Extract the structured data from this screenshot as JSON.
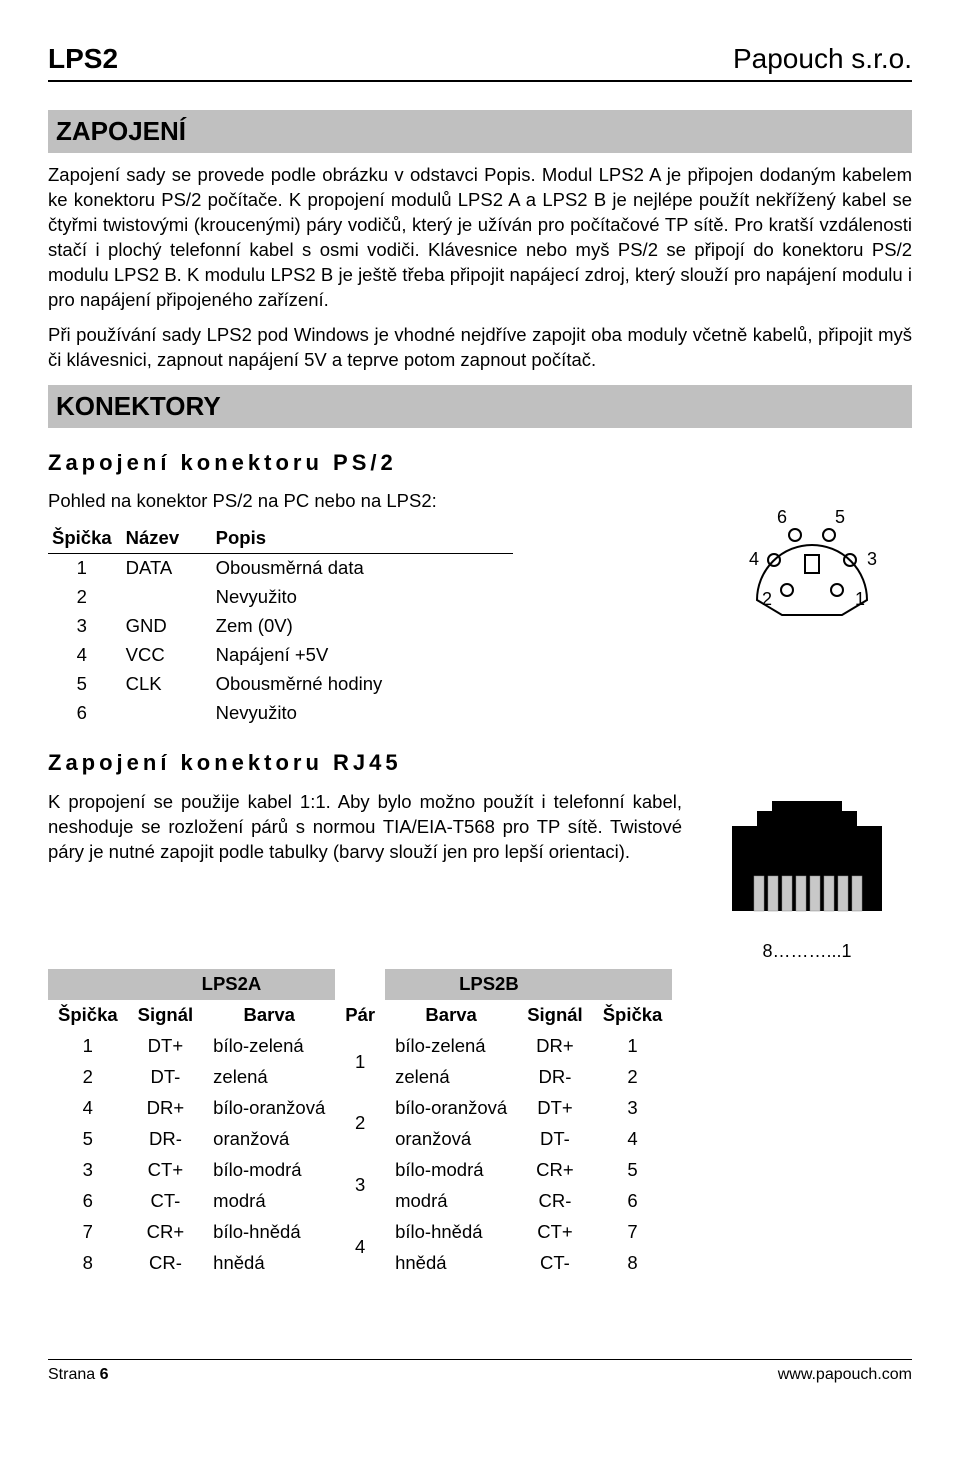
{
  "header": {
    "left": "LPS2",
    "right": "Papouch s.r.o."
  },
  "sections": {
    "zapojeni": {
      "title": "ZAPOJENÍ",
      "p1": "Zapojení sady se provede podle obrázku v odstavci Popis. Modul LPS2 A je připojen dodaným kabelem ke konektoru PS/2 počítače. K propojení modulů LPS2 A a LPS2 B je nejlépe použít nekřížený kabel se čtyřmi twistovými (kroucenými) páry vodičů, který je užíván pro počítačové TP sítě. Pro kratší vzdálenosti stačí i plochý telefonní kabel s osmi vodiči. Klávesnice nebo myš PS/2 se připojí do konektoru PS/2 modulu LPS2 B. K modulu LPS2 B je ještě třeba připojit napájecí zdroj, který slouží pro napájení modulu i pro napájení připojeného zařízení.",
      "p2": "Při používání sady LPS2 pod Windows je vhodné nejdříve zapojit oba moduly včetně kabelů, připojit myš či klávesnici, zapnout napájení 5V a teprve potom zapnout počítač."
    },
    "konektory": {
      "title": "KONEKTORY"
    },
    "ps2": {
      "heading": "Zapojení konektoru PS/2",
      "intro": "Pohled na konektor PS/2 na PC nebo na LPS2:",
      "columns": [
        "Špička",
        "Název",
        "Popis"
      ],
      "rows": [
        [
          "1",
          "DATA",
          "Obousměrná data"
        ],
        [
          "2",
          "",
          "Nevyužito"
        ],
        [
          "3",
          "GND",
          "Zem (0V)"
        ],
        [
          "4",
          "VCC",
          "Napájení +5V"
        ],
        [
          "5",
          "CLK",
          "Obousměrné hodiny"
        ],
        [
          "6",
          "",
          "Nevyužito"
        ]
      ],
      "pin_labels": [
        "1",
        "2",
        "3",
        "4",
        "5",
        "6"
      ]
    },
    "rj45": {
      "heading": "Zapojení konektoru RJ45",
      "intro": "K propojení se použije kabel 1:1. Aby bylo možno použít i telefonní kabel, neshoduje se rozložení párů s normou TIA/EIA-T568 pro TP sítě. Twistové páry je nutné zapojit podle tabulky (barvy slouží jen pro lepší orientaci).",
      "group_a": "LPS2A",
      "group_b": "LPS2B",
      "label_under": "8………...1",
      "columns": [
        "Špička",
        "Signál",
        "Barva",
        "Pár",
        "Barva",
        "Signál",
        "Špička"
      ],
      "rows": [
        {
          "a_pin": "1",
          "a_sig": "DT+",
          "a_col": "bílo-zelená",
          "pair": "1",
          "b_col": "bílo-zelená",
          "b_sig": "DR+",
          "b_pin": "1"
        },
        {
          "a_pin": "2",
          "a_sig": "DT-",
          "a_col": "zelená",
          "pair": "",
          "b_col": "zelená",
          "b_sig": "DR-",
          "b_pin": "2"
        },
        {
          "a_pin": "4",
          "a_sig": "DR+",
          "a_col": "bílo-oranžová",
          "pair": "2",
          "b_col": "bílo-oranžová",
          "b_sig": "DT+",
          "b_pin": "3"
        },
        {
          "a_pin": "5",
          "a_sig": "DR-",
          "a_col": "oranžová",
          "pair": "",
          "b_col": "oranžová",
          "b_sig": "DT-",
          "b_pin": "4"
        },
        {
          "a_pin": "3",
          "a_sig": "CT+",
          "a_col": "bílo-modrá",
          "pair": "3",
          "b_col": "bílo-modrá",
          "b_sig": "CR+",
          "b_pin": "5"
        },
        {
          "a_pin": "6",
          "a_sig": "CT-",
          "a_col": "modrá",
          "pair": "",
          "b_col": "modrá",
          "b_sig": "CR-",
          "b_pin": "6"
        },
        {
          "a_pin": "7",
          "a_sig": "CR+",
          "a_col": "bílo-hnědá",
          "pair": "4",
          "b_col": "bílo-hnědá",
          "b_sig": "CT+",
          "b_pin": "7"
        },
        {
          "a_pin": "8",
          "a_sig": "CR-",
          "a_col": "hnědá",
          "pair": "",
          "b_col": "hnědá",
          "b_sig": "CT-",
          "b_pin": "8"
        }
      ]
    }
  },
  "footer": {
    "left": "Strana 6",
    "right": "www.papouch.com"
  }
}
